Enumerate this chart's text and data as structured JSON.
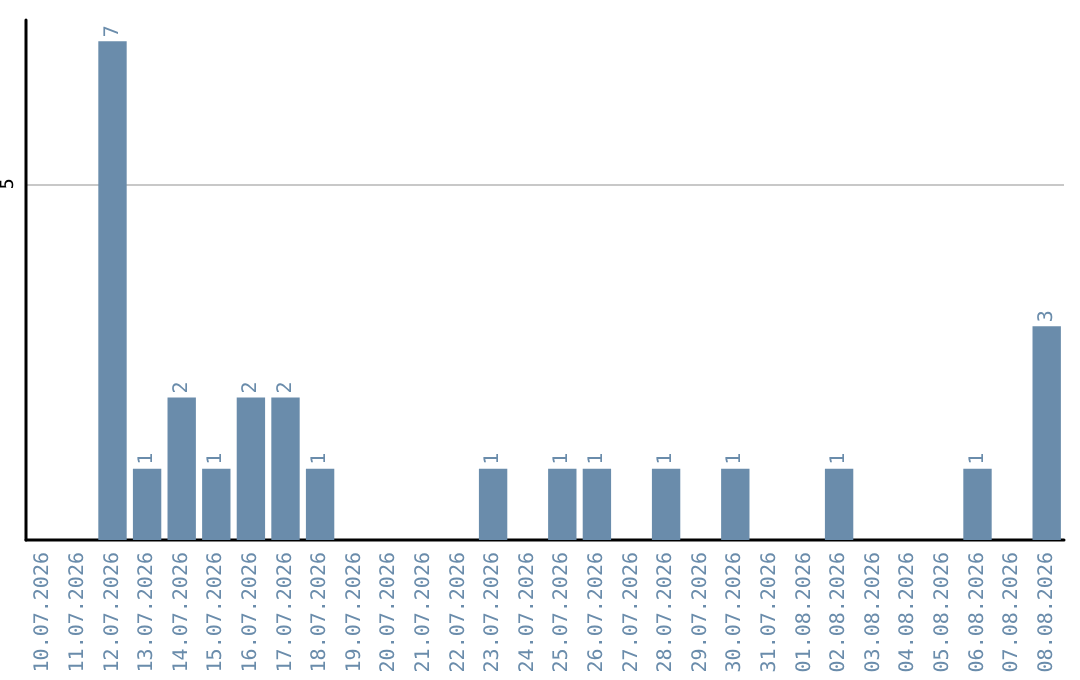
{
  "chart_data": {
    "type": "bar",
    "categories": [
      "10.07.2026",
      "11.07.2026",
      "12.07.2026",
      "13.07.2026",
      "14.07.2026",
      "15.07.2026",
      "16.07.2026",
      "17.07.2026",
      "18.07.2026",
      "19.07.2026",
      "20.07.2026",
      "21.07.2026",
      "22.07.2026",
      "23.07.2026",
      "24.07.2026",
      "25.07.2026",
      "26.07.2026",
      "27.07.2026",
      "28.07.2026",
      "29.07.2026",
      "30.07.2026",
      "31.07.2026",
      "01.08.2026",
      "02.08.2026",
      "03.08.2026",
      "04.08.2026",
      "05.08.2026",
      "06.08.2026",
      "07.08.2026",
      "08.08.2026"
    ],
    "values": [
      0,
      0,
      7,
      1,
      2,
      1,
      2,
      2,
      1,
      0,
      0,
      0,
      0,
      1,
      0,
      1,
      1,
      0,
      1,
      0,
      1,
      0,
      0,
      1,
      0,
      0,
      0,
      1,
      0,
      3
    ],
    "value_labels": [
      null,
      null,
      "7",
      "1",
      "2",
      "1",
      "2",
      "2",
      "1",
      null,
      null,
      null,
      null,
      "1",
      null,
      "1",
      "1",
      null,
      "1",
      null,
      "1",
      null,
      null,
      "1",
      null,
      null,
      null,
      "1",
      null,
      "3"
    ],
    "color": "#6a8cab",
    "ylim": [
      0,
      7.3
    ],
    "yticks": [
      5
    ],
    "grid": "y"
  }
}
